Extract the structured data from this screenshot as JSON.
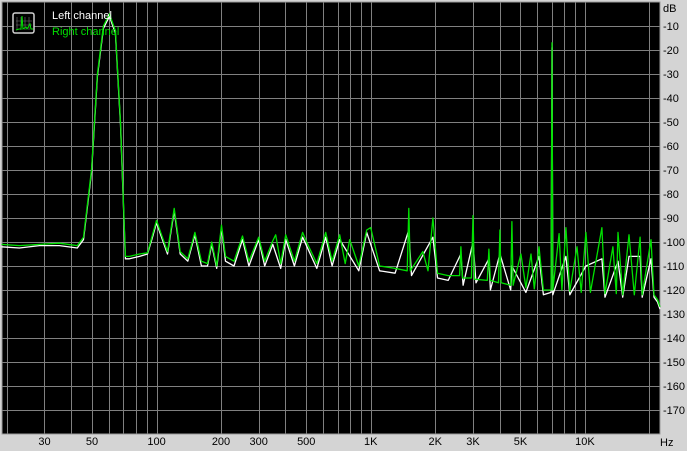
{
  "chart_data": {
    "type": "line",
    "title": "",
    "xlabel": "Hz",
    "ylabel": "dB",
    "x_scale": "log",
    "xlim": [
      19,
      22400
    ],
    "ylim": [
      -180,
      0
    ],
    "grid": true,
    "legend_placement": "top-left",
    "x_ticks": [
      {
        "value": 30,
        "label": "30"
      },
      {
        "value": 50,
        "label": "50"
      },
      {
        "value": 100,
        "label": "100"
      },
      {
        "value": 200,
        "label": "200"
      },
      {
        "value": 300,
        "label": "300"
      },
      {
        "value": 500,
        "label": "500"
      },
      {
        "value": 1000,
        "label": "1K"
      },
      {
        "value": 2000,
        "label": "2K"
      },
      {
        "value": 3000,
        "label": "3K"
      },
      {
        "value": 5000,
        "label": "5K"
      },
      {
        "value": 10000,
        "label": "10K"
      }
    ],
    "y_ticks": [
      -10,
      -20,
      -30,
      -40,
      -50,
      -60,
      -70,
      -80,
      -90,
      -100,
      -110,
      -120,
      -130,
      -140,
      -150,
      -160,
      -170
    ],
    "colors": {
      "background": "#000000",
      "grid": "#808080",
      "frame": "#d4d4d4"
    },
    "series": [
      {
        "name": "Left channel",
        "color": "#ffffff",
        "points": [
          [
            18.9,
            -102
          ],
          [
            22.9,
            -102.5
          ],
          [
            28.4,
            -101.5
          ],
          [
            35.2,
            -101.5
          ],
          [
            42.7,
            -102.5
          ],
          [
            45.6,
            -99
          ],
          [
            49.7,
            -71
          ],
          [
            53,
            -31
          ],
          [
            56.5,
            -11
          ],
          [
            60.3,
            -6
          ],
          [
            64.3,
            -13
          ],
          [
            67.9,
            -51
          ],
          [
            71.6,
            -107
          ],
          [
            74.8,
            -107
          ],
          [
            83.3,
            -106
          ],
          [
            90.8,
            -105
          ],
          [
            95.8,
            -98
          ],
          [
            100,
            -92
          ],
          [
            105.5,
            -98
          ],
          [
            112.5,
            -105
          ],
          [
            121,
            -87
          ],
          [
            129,
            -105
          ],
          [
            140,
            -108
          ],
          [
            151,
            -97
          ],
          [
            162,
            -110
          ],
          [
            173,
            -110
          ],
          [
            181,
            -101
          ],
          [
            191,
            -111
          ],
          [
            201,
            -94
          ],
          [
            210,
            -108
          ],
          [
            230,
            -110
          ],
          [
            252,
            -99
          ],
          [
            270,
            -110
          ],
          [
            300,
            -99
          ],
          [
            320,
            -110
          ],
          [
            349,
            -101
          ],
          [
            380,
            -111
          ],
          [
            401,
            -99
          ],
          [
            440,
            -110
          ],
          [
            481,
            -98
          ],
          [
            560,
            -111
          ],
          [
            616,
            -98
          ],
          [
            660,
            -110
          ],
          [
            716,
            -99
          ],
          [
            880,
            -112
          ],
          [
            958,
            -96
          ],
          [
            1100,
            -112
          ],
          [
            1300,
            -113
          ],
          [
            1506,
            -95
          ],
          [
            1550,
            -114
          ],
          [
            1950,
            -98
          ],
          [
            2050,
            -115
          ],
          [
            2300,
            -116
          ],
          [
            2636,
            -105
          ],
          [
            2700,
            -118
          ],
          [
            3000,
            -100
          ],
          [
            3100,
            -117
          ],
          [
            3560,
            -107
          ],
          [
            3620,
            -120
          ],
          [
            4006,
            -105
          ],
          [
            4500,
            -120
          ],
          [
            4560,
            -110
          ],
          [
            5300,
            -121
          ],
          [
            6100,
            -106
          ],
          [
            6400,
            -122
          ],
          [
            6950,
            -121
          ],
          [
            7015,
            -19
          ],
          [
            7080,
            -122
          ],
          [
            8150,
            -106
          ],
          [
            8500,
            -122
          ],
          [
            10100,
            -110
          ],
          [
            12000,
            -107
          ],
          [
            12400,
            -123
          ],
          [
            14270,
            -108
          ],
          [
            15000,
            -123
          ],
          [
            16060,
            -106
          ],
          [
            18080,
            -106
          ],
          [
            18500,
            -123
          ],
          [
            20340,
            -107
          ],
          [
            21000,
            -123
          ],
          [
            21800,
            -125
          ],
          [
            22400,
            -128
          ]
        ]
      },
      {
        "name": "Right channel",
        "color": "#00e000",
        "points": [
          [
            18.9,
            -101
          ],
          [
            22.9,
            -101.5
          ],
          [
            28.4,
            -101
          ],
          [
            35.2,
            -100.5
          ],
          [
            42.7,
            -101.5
          ],
          [
            45.6,
            -98
          ],
          [
            49.7,
            -70
          ],
          [
            53,
            -30
          ],
          [
            56.5,
            -10
          ],
          [
            60.3,
            -5
          ],
          [
            64.3,
            -12
          ],
          [
            67.9,
            -50
          ],
          [
            71.6,
            -106
          ],
          [
            74.8,
            -106
          ],
          [
            83.3,
            -105
          ],
          [
            90.8,
            -104.5
          ],
          [
            95.8,
            -97
          ],
          [
            100,
            -91
          ],
          [
            105.5,
            -97
          ],
          [
            112.5,
            -104
          ],
          [
            121,
            -86
          ],
          [
            129,
            -104
          ],
          [
            140,
            -107
          ],
          [
            151,
            -96
          ],
          [
            162,
            -108
          ],
          [
            173,
            -109
          ],
          [
            181,
            -100
          ],
          [
            191,
            -110
          ],
          [
            201,
            -93
          ],
          [
            210,
            -106
          ],
          [
            230,
            -108
          ],
          [
            252,
            -97.5
          ],
          [
            270,
            -108
          ],
          [
            300,
            -98
          ],
          [
            320,
            -108
          ],
          [
            349,
            -99.5
          ],
          [
            360,
            -97
          ],
          [
            380,
            -109
          ],
          [
            401,
            -97
          ],
          [
            440,
            -108
          ],
          [
            481,
            -96
          ],
          [
            502,
            -100
          ],
          [
            560,
            -109
          ],
          [
            616,
            -96
          ],
          [
            660,
            -108
          ],
          [
            716,
            -97
          ],
          [
            760,
            -109
          ],
          [
            798,
            -99
          ],
          [
            880,
            -110
          ],
          [
            958,
            -95
          ],
          [
            1000,
            -94
          ],
          [
            1100,
            -110
          ],
          [
            1300,
            -111
          ],
          [
            1480,
            -112
          ],
          [
            1506,
            -86
          ],
          [
            1530,
            -112
          ],
          [
            1750,
            -104
          ],
          [
            1850,
            -112
          ],
          [
            1950,
            -90
          ],
          [
            2050,
            -113
          ],
          [
            2300,
            -114
          ],
          [
            2600,
            -114
          ],
          [
            2636,
            -102
          ],
          [
            2680,
            -115
          ],
          [
            2950,
            -115
          ],
          [
            3000,
            -89
          ],
          [
            3050,
            -115.5
          ],
          [
            3500,
            -116
          ],
          [
            3560,
            -103
          ],
          [
            3620,
            -116
          ],
          [
            3950,
            -117
          ],
          [
            4006,
            -95
          ],
          [
            4060,
            -117
          ],
          [
            4500,
            -118
          ],
          [
            4560,
            -91.5
          ],
          [
            4620,
            -118
          ],
          [
            5024,
            -105
          ],
          [
            5300,
            -119
          ],
          [
            5597,
            -105
          ],
          [
            5800,
            -119.5
          ],
          [
            6100,
            -102
          ],
          [
            6400,
            -120
          ],
          [
            6950,
            -120
          ],
          [
            7015,
            -17
          ],
          [
            7080,
            -120
          ],
          [
            7570,
            -96.5
          ],
          [
            7800,
            -120
          ],
          [
            8150,
            -94
          ],
          [
            8500,
            -120.5
          ],
          [
            9180,
            -102
          ],
          [
            9600,
            -121
          ],
          [
            10100,
            -96
          ],
          [
            10600,
            -121
          ],
          [
            12000,
            -94
          ],
          [
            12400,
            -121.5
          ],
          [
            13500,
            -102
          ],
          [
            14000,
            -121.5
          ],
          [
            14270,
            -96
          ],
          [
            15000,
            -122
          ],
          [
            16060,
            -97
          ],
          [
            17000,
            -122
          ],
          [
            18080,
            -98
          ],
          [
            18500,
            -122
          ],
          [
            20340,
            -99
          ],
          [
            21000,
            -122
          ],
          [
            21800,
            -124
          ],
          [
            22400,
            -127
          ]
        ]
      }
    ]
  },
  "legend": {
    "icon": "spectrum-icon",
    "items": [
      {
        "label": "Left channel",
        "color": "#ffffff"
      },
      {
        "label": "Right channel",
        "color": "#00e000"
      }
    ]
  }
}
